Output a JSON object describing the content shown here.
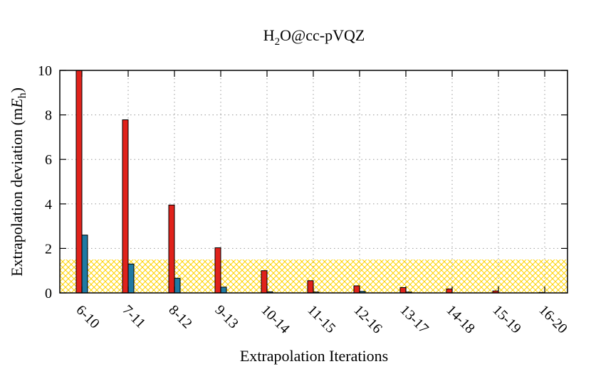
{
  "chart_data": {
    "type": "bar",
    "title_parts": {
      "base": "H",
      "sub": "2",
      "rest": "O@cc-pVQZ"
    },
    "xlabel": "Extrapolation Iterations",
    "ylabel_parts": {
      "prefix": "Extrapolation deviation (m",
      "italic": "E",
      "sub": "h",
      "suffix": ")"
    },
    "categories": [
      "6-10",
      "7-11",
      "8-12",
      "9-13",
      "10-14",
      "11-15",
      "12-16",
      "13-17",
      "14-18",
      "15-19",
      "16-20"
    ],
    "series": [
      {
        "color": "#e0221b",
        "values": [
          10.0,
          7.78,
          3.95,
          2.03,
          1.0,
          0.55,
          0.32,
          0.24,
          0.18,
          0.09,
          0.02
        ]
      },
      {
        "color": "#1f7aa3",
        "values": [
          2.6,
          1.3,
          0.66,
          0.26,
          0.05,
          0.04,
          0.07,
          0.04,
          0.0,
          0.0,
          0.0
        ]
      }
    ],
    "yticks": [
      "0",
      "2",
      "4",
      "6",
      "8",
      "10"
    ],
    "ylim": [
      0,
      10
    ],
    "tolerance_band": {
      "from": 0,
      "to": 1.5,
      "color": "#ffd200"
    },
    "grid": true
  }
}
